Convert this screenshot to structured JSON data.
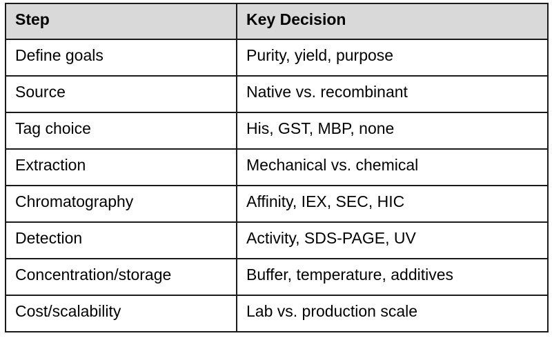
{
  "colors": {
    "header_bg": "#d9d9d9",
    "border": "#1a1a1a",
    "cell_bg": "#ffffff",
    "text": "#000000"
  },
  "table": {
    "columns": [
      "Step",
      "Key Decision"
    ],
    "rows": [
      {
        "step": "Define goals",
        "decision": "Purity, yield, purpose"
      },
      {
        "step": "Source",
        "decision": "Native vs. recombinant"
      },
      {
        "step": "Tag choice",
        "decision": "His, GST, MBP, none"
      },
      {
        "step": "Extraction",
        "decision": "Mechanical vs. chemical"
      },
      {
        "step": "Chromatography",
        "decision": "Affinity, IEX, SEC, HIC"
      },
      {
        "step": "Detection",
        "decision": "Activity, SDS-PAGE, UV"
      },
      {
        "step": "Concentration/storage",
        "decision": "Buffer, temperature, additives"
      },
      {
        "step": "Cost/scalability",
        "decision": "Lab vs. production scale"
      }
    ]
  }
}
